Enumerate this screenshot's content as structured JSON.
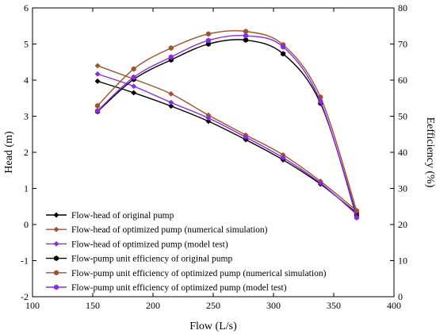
{
  "chart_data": {
    "type": "line",
    "title": "",
    "xlabel": "Flow (L/s)",
    "ylabel_left": "Head (m)",
    "ylabel_right": "Eefficiency (%)",
    "xlim": [
      100,
      400
    ],
    "ylim_left": [
      -2,
      6
    ],
    "ylim_right": [
      0,
      80
    ],
    "xticks": [
      100,
      150,
      200,
      250,
      300,
      350,
      400
    ],
    "yticks_left": [
      -2,
      -1,
      0,
      1,
      2,
      3,
      4,
      5,
      6
    ],
    "yticks_right": [
      0,
      10,
      20,
      30,
      40,
      50,
      60,
      70,
      80
    ],
    "grid": false,
    "legend_position": "bottom-left",
    "series": [
      {
        "name": "Flow-head of original pump",
        "axis": "left",
        "color": "#000000",
        "marker": "diamond",
        "x": [
          154,
          184,
          215,
          246,
          277,
          308,
          339,
          369
        ],
        "y": [
          3.97,
          3.65,
          3.28,
          2.86,
          2.35,
          1.79,
          1.12,
          0.32
        ]
      },
      {
        "name": "Flow-head of optimized pump (numerical simulation)",
        "axis": "left",
        "color": "#a0522d",
        "marker": "diamond",
        "x": [
          154,
          184,
          215,
          246,
          277,
          308,
          339,
          369
        ],
        "y": [
          4.4,
          4.03,
          3.62,
          3.03,
          2.48,
          1.93,
          1.2,
          0.38
        ]
      },
      {
        "name": "Flow-head of optimized pump (model test)",
        "axis": "left",
        "color": "#8a2be2",
        "marker": "diamond",
        "x": [
          154,
          184,
          215,
          246,
          277,
          308,
          339,
          369
        ],
        "y": [
          4.17,
          3.83,
          3.38,
          2.95,
          2.42,
          1.85,
          1.15,
          0.28
        ]
      },
      {
        "name": "Flow-pump unit efficiency of original pump",
        "axis": "right",
        "color": "#000000",
        "marker": "hexagon",
        "x": [
          154,
          184,
          215,
          246,
          277,
          308,
          339,
          369
        ],
        "y": [
          51.3,
          60.2,
          65.6,
          70.0,
          71.1,
          67.3,
          53.6,
          22.5
        ]
      },
      {
        "name": "Flow-pump unit efficiency of optimized pump (numerical simulation)",
        "axis": "right",
        "color": "#a0522d",
        "marker": "hexagon",
        "x": [
          154,
          184,
          215,
          246,
          277,
          308,
          339,
          369
        ],
        "y": [
          52.9,
          63.1,
          68.9,
          72.8,
          73.5,
          69.8,
          55.3,
          23.8
        ]
      },
      {
        "name": "Flow-pump unit efficiency of optimized pump (model test)",
        "axis": "right",
        "color": "#8a2be2",
        "marker": "hexagon",
        "x": [
          154,
          184,
          215,
          246,
          277,
          308,
          339,
          369
        ],
        "y": [
          51.5,
          60.8,
          66.4,
          71.0,
          72.3,
          69.2,
          54.1,
          21.9
        ]
      }
    ]
  }
}
